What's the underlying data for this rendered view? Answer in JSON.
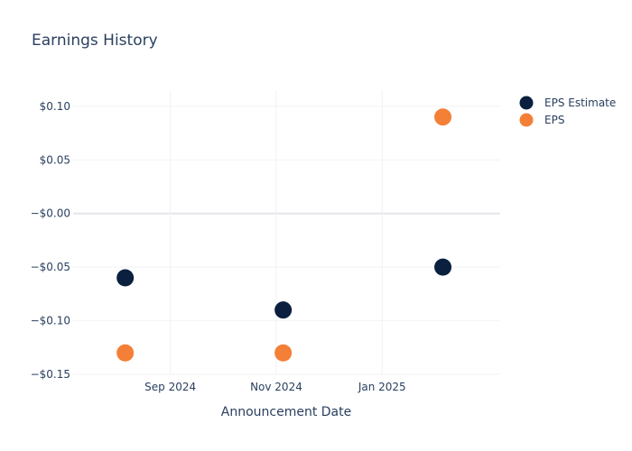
{
  "chart_data": {
    "type": "scatter",
    "title": "Earnings History",
    "xlabel": "Announcement Date",
    "ylabel": "",
    "x_ticks": [
      {
        "date": "2024-09-01",
        "label": "Sep 2024"
      },
      {
        "date": "2024-11-01",
        "label": "Nov 2024"
      },
      {
        "date": "2025-01-01",
        "label": "Jan 2025"
      }
    ],
    "y_ticks": [
      {
        "value": 0.1,
        "label": "$0.10"
      },
      {
        "value": 0.05,
        "label": "$0.05"
      },
      {
        "value": 0.0,
        "label": "−$0.00"
      },
      {
        "value": -0.05,
        "label": "−$0.05"
      },
      {
        "value": -0.1,
        "label": "−$0.10"
      },
      {
        "value": -0.15,
        "label": "−$0.15"
      }
    ],
    "xlim": [
      "2024-07-07",
      "2025-03-10"
    ],
    "ylim": [
      -0.15,
      0.115
    ],
    "grid": true,
    "legend_position": "top-right",
    "series": [
      {
        "name": "EPS Estimate",
        "color": "#0b1f3f",
        "points": [
          {
            "x": "2024-08-06",
            "y": -0.06
          },
          {
            "x": "2024-11-05",
            "y": -0.09
          },
          {
            "x": "2025-02-05",
            "y": -0.05
          }
        ]
      },
      {
        "name": "EPS",
        "color": "#f47f36",
        "points": [
          {
            "x": "2024-08-06",
            "y": -0.13
          },
          {
            "x": "2024-11-05",
            "y": -0.13
          },
          {
            "x": "2025-02-05",
            "y": 0.09
          }
        ]
      }
    ]
  }
}
